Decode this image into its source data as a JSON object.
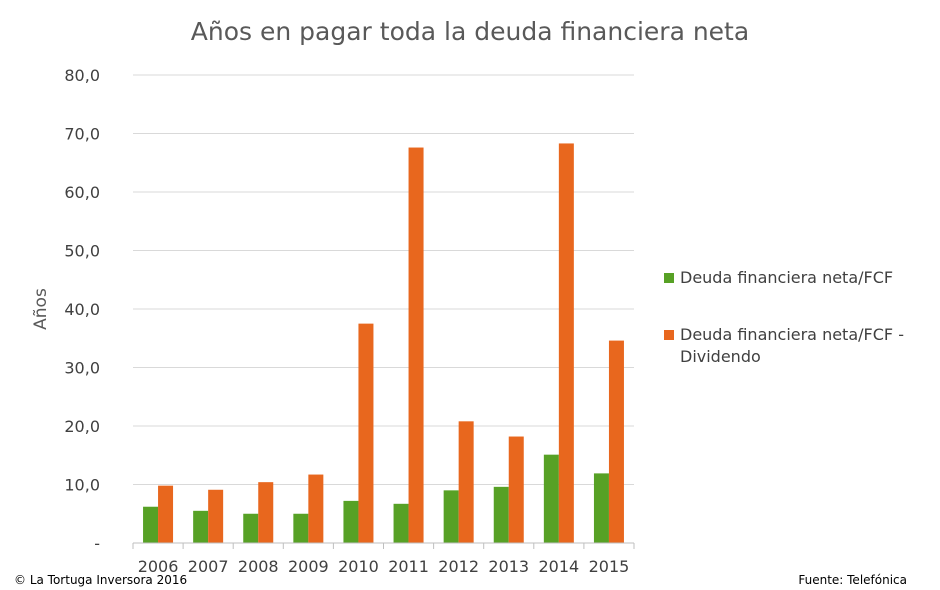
{
  "chart_data": {
    "type": "bar",
    "title": "Años en pagar toda la deuda financiera neta",
    "xlabel": "",
    "ylabel": "Años",
    "ylim": [
      0,
      80
    ],
    "yticks": [
      0,
      10,
      20,
      30,
      40,
      50,
      60,
      70,
      80
    ],
    "ytick_labels": [
      "-",
      "10,0",
      "20,0",
      "30,0",
      "40,0",
      "50,0",
      "60,0",
      "70,0",
      "80,0"
    ],
    "categories": [
      "2006",
      "2007",
      "2008",
      "2009",
      "2010",
      "2011",
      "2012",
      "2013",
      "2014",
      "2015"
    ],
    "series": [
      {
        "name": "Deuda financiera neta/FCF",
        "color": "#57a125",
        "values": [
          6.2,
          5.5,
          5.0,
          5.0,
          7.2,
          6.7,
          9.0,
          9.6,
          15.1,
          11.9
        ]
      },
      {
        "name": "Deuda financiera neta/FCF - Dividendo",
        "legend_lines": [
          "Deuda financiera neta/FCF -",
          "Dividendo"
        ],
        "color": "#e8671e",
        "values": [
          9.8,
          9.1,
          10.4,
          11.7,
          37.5,
          67.6,
          20.8,
          18.2,
          68.3,
          34.6
        ]
      }
    ],
    "grid": true,
    "legend_position": "right"
  },
  "footer": {
    "copyright": "© La Tortuga Inversora 2016",
    "source": "Fuente: Telefónica"
  }
}
